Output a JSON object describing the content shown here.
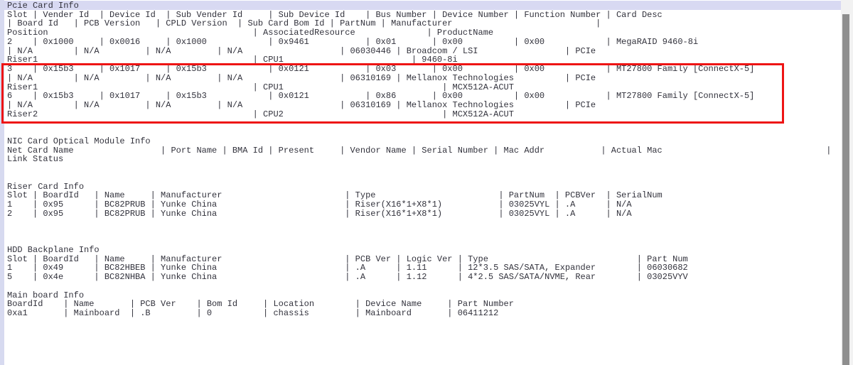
{
  "window": {
    "kind": "terminal-console",
    "bg_color": "#ffffff",
    "text_color": "#32323c",
    "selected_line_bg": "#d8d9f2",
    "annotation_color": "#ee1414",
    "scrollbar_thumb_color": "#8e8e8e"
  },
  "highlighted_line_text": "Pcie Card Info",
  "console": {
    "note": "each line is a list of [column, text] segments of monospace terminal output",
    "sections": [
      {
        "id": "pcie",
        "title": "Pcie Card Info",
        "blanks_after": 2,
        "lines": [
          [
            [
              0,
              "Pcie Card Info"
            ]
          ],
          [
            [
              0,
              "Slot"
            ],
            [
              5,
              "| Vender Id"
            ],
            [
              18,
              "| Device Id"
            ],
            [
              31,
              "| Sub Vender Id"
            ],
            [
              51,
              "| Sub Device Id"
            ],
            [
              70,
              "| Bus Number"
            ],
            [
              83,
              "| Device Number"
            ],
            [
              99,
              "| Function Number"
            ],
            [
              117,
              "| Card Desc"
            ]
          ],
          [
            [
              0,
              "| Board Id"
            ],
            [
              13,
              "| PCB Version"
            ],
            [
              29,
              "| CPLD Version"
            ],
            [
              45,
              "| Sub Card Bom Id"
            ],
            [
              63,
              "| PartNum"
            ],
            [
              73,
              "| Manufacturer"
            ],
            [
              115,
              "|"
            ]
          ],
          [
            [
              0,
              "Position"
            ],
            [
              48,
              "| AssociatedResource"
            ],
            [
              82,
              "| ProductName"
            ]
          ],
          [
            [
              0,
              "2"
            ],
            [
              5,
              "| 0x1000"
            ],
            [
              18,
              "| 0x0016"
            ],
            [
              31,
              "| 0x1000"
            ],
            [
              51,
              "| 0x9461"
            ],
            [
              70,
              "| 0x01"
            ],
            [
              83,
              "| 0x00"
            ],
            [
              99,
              "| 0x00"
            ],
            [
              117,
              "| MegaRAID 9460-8i"
            ]
          ],
          [
            [
              0,
              "| N/A"
            ],
            [
              13,
              "| N/A"
            ],
            [
              27,
              "| N/A"
            ],
            [
              41,
              "| N/A"
            ],
            [
              65,
              "| 06030446"
            ],
            [
              76,
              "| Broadcom / LSI"
            ],
            [
              109,
              "| PCIe"
            ]
          ],
          [
            [
              0,
              "Riser1"
            ],
            [
              48,
              "| CPU1"
            ],
            [
              79,
              "| 9460-8i"
            ]
          ],
          [
            [
              0,
              "3"
            ],
            [
              5,
              "| 0x15b3"
            ],
            [
              18,
              "| 0x1017"
            ],
            [
              31,
              "| 0x15b3"
            ],
            [
              51,
              "| 0x0121"
            ],
            [
              70,
              "| 0x03"
            ],
            [
              83,
              "| 0x00"
            ],
            [
              99,
              "| 0x00"
            ],
            [
              117,
              "| MT27800 Family [ConnectX-5]"
            ]
          ],
          [
            [
              0,
              "| N/A"
            ],
            [
              13,
              "| N/A"
            ],
            [
              27,
              "| N/A"
            ],
            [
              41,
              "| N/A"
            ],
            [
              65,
              "| 06310169"
            ],
            [
              76,
              "| Mellanox Technologies"
            ],
            [
              109,
              "| PCIe"
            ]
          ],
          [
            [
              0,
              "Riser1"
            ],
            [
              48,
              "| CPU1"
            ],
            [
              85,
              "| MCX512A-ACUT"
            ]
          ],
          [
            [
              0,
              "6"
            ],
            [
              5,
              "| 0x15b3"
            ],
            [
              18,
              "| 0x1017"
            ],
            [
              31,
              "| 0x15b3"
            ],
            [
              51,
              "| 0x0121"
            ],
            [
              70,
              "| 0x86"
            ],
            [
              83,
              "| 0x00"
            ],
            [
              99,
              "| 0x00"
            ],
            [
              117,
              "| MT27800 Family [ConnectX-5]"
            ]
          ],
          [
            [
              0,
              "| N/A"
            ],
            [
              13,
              "| N/A"
            ],
            [
              27,
              "| N/A"
            ],
            [
              41,
              "| N/A"
            ],
            [
              65,
              "| 06310169"
            ],
            [
              76,
              "| Mellanox Technologies"
            ],
            [
              109,
              "| PCIe"
            ]
          ],
          [
            [
              0,
              "Riser2"
            ],
            [
              48,
              "| CPU2"
            ],
            [
              85,
              "| MCX512A-ACUT"
            ]
          ]
        ]
      },
      {
        "id": "nic-optical",
        "title": "NIC Card Optical Module Info",
        "blanks_after": 2,
        "lines": [
          [
            [
              0,
              "NIC Card Optical Module Info"
            ]
          ],
          [
            [
              0,
              "Net Card Name"
            ],
            [
              30,
              "| Port Name"
            ],
            [
              42,
              "| BMA Id"
            ],
            [
              51,
              "| Present"
            ],
            [
              65,
              "| Vendor Name"
            ],
            [
              79,
              "| Serial Number"
            ],
            [
              95,
              "| Mac Addr"
            ],
            [
              116,
              "| Actual Mac"
            ],
            [
              160,
              "|"
            ]
          ],
          [
            [
              0,
              "Link Status"
            ]
          ]
        ]
      },
      {
        "id": "riser",
        "title": "Riser Card Info",
        "blanks_after": 3,
        "lines": [
          [
            [
              0,
              "Riser Card Info"
            ]
          ],
          [
            [
              0,
              "Slot"
            ],
            [
              5,
              "| BoardId"
            ],
            [
              17,
              "| Name"
            ],
            [
              28,
              "| Manufacturer"
            ],
            [
              66,
              "| Type"
            ],
            [
              96,
              "| PartNum"
            ],
            [
              107,
              "| PCBVer"
            ],
            [
              117,
              "| SerialNum"
            ]
          ],
          [
            [
              0,
              "1"
            ],
            [
              5,
              "| 0x95"
            ],
            [
              17,
              "| BC82PRUB"
            ],
            [
              28,
              "| Yunke China"
            ],
            [
              66,
              "| Riser(X16*1+X8*1)"
            ],
            [
              96,
              "| 03025VYL"
            ],
            [
              107,
              "| .A"
            ],
            [
              117,
              "| N/A"
            ]
          ],
          [
            [
              0,
              "2"
            ],
            [
              5,
              "| 0x95"
            ],
            [
              17,
              "| BC82PRUB"
            ],
            [
              28,
              "| Yunke China"
            ],
            [
              66,
              "| Riser(X16*1+X8*1)"
            ],
            [
              96,
              "| 03025VYL"
            ],
            [
              107,
              "| .A"
            ],
            [
              117,
              "| N/A"
            ]
          ]
        ]
      },
      {
        "id": "hdd-backplane",
        "title": "HDD Backplane Info",
        "blanks_after": 1,
        "lines": [
          [
            [
              0,
              "HDD Backplane Info"
            ]
          ],
          [
            [
              0,
              "Slot"
            ],
            [
              5,
              "| BoardId"
            ],
            [
              17,
              "| Name"
            ],
            [
              28,
              "| Manufacturer"
            ],
            [
              66,
              "| PCB Ver"
            ],
            [
              76,
              "| Logic Ver"
            ],
            [
              88,
              "| Type"
            ],
            [
              123,
              "| Part Num"
            ]
          ],
          [
            [
              0,
              "1"
            ],
            [
              5,
              "| 0x49"
            ],
            [
              17,
              "| BC82HBEB"
            ],
            [
              28,
              "| Yunke China"
            ],
            [
              66,
              "| .A"
            ],
            [
              76,
              "| 1.11"
            ],
            [
              88,
              "| 12*3.5 SAS/SATA, Expander"
            ],
            [
              123,
              "| 06030682"
            ]
          ],
          [
            [
              0,
              "5"
            ],
            [
              5,
              "| 0x4e"
            ],
            [
              17,
              "| BC82NHBA"
            ],
            [
              28,
              "| Yunke China"
            ],
            [
              66,
              "| .A"
            ],
            [
              76,
              "| 1.12"
            ],
            [
              88,
              "| 4*2.5 SAS/SATA/NVME, Rear"
            ],
            [
              123,
              "| 03025VYV"
            ]
          ]
        ]
      },
      {
        "id": "mainboard",
        "title": "Main board Info",
        "blanks_after": 0,
        "lines": [
          [
            [
              0,
              "Main board Info"
            ]
          ],
          [
            [
              0,
              "BoardId"
            ],
            [
              11,
              "| Name"
            ],
            [
              24,
              "| PCB Ver"
            ],
            [
              37,
              "| Bom Id"
            ],
            [
              50,
              "| Location"
            ],
            [
              68,
              "| Device Name"
            ],
            [
              86,
              "| Part Number"
            ]
          ],
          [
            [
              0,
              "0xa1"
            ],
            [
              11,
              "| Mainboard"
            ],
            [
              24,
              "| .B"
            ],
            [
              37,
              "| 0"
            ],
            [
              50,
              "| chassis"
            ],
            [
              68,
              "| Mainboard"
            ],
            [
              86,
              "| 06411212"
            ]
          ]
        ]
      }
    ]
  },
  "annotation": {
    "shape": "red-rectangle",
    "purpose": "highlights PCIe slots 3 and 6 (Mellanox ConnectX-5 cards)"
  }
}
